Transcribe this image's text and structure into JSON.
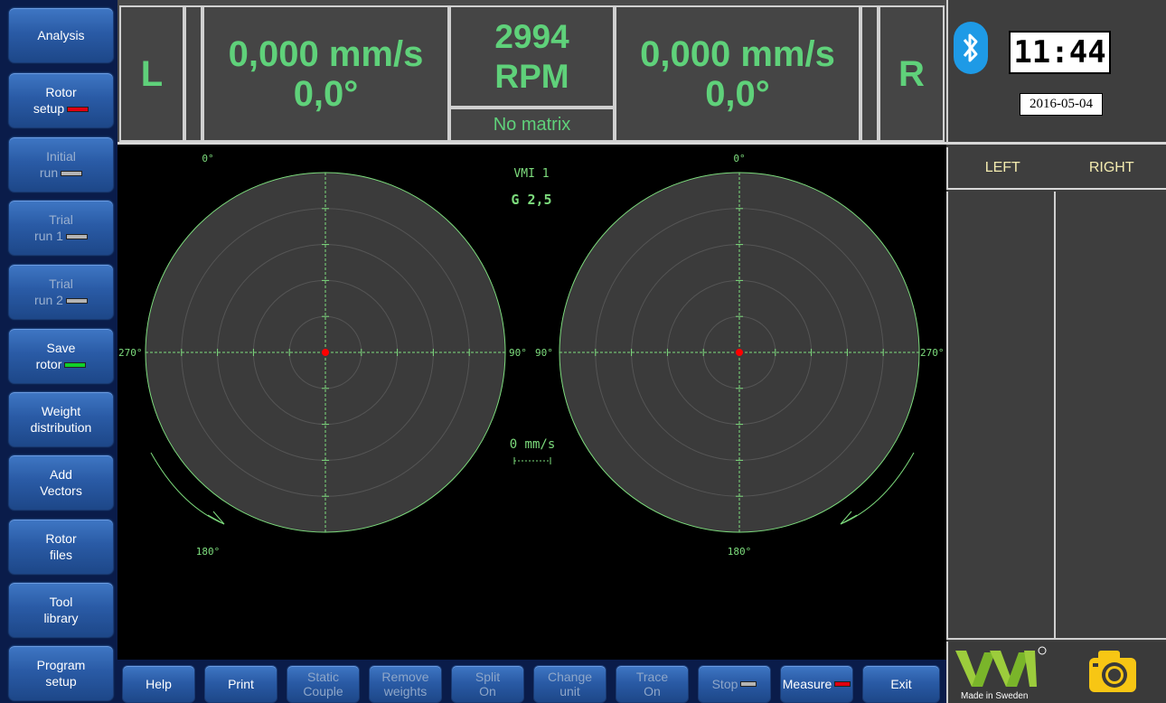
{
  "sidebar": {
    "items": [
      {
        "line1": "Analysis",
        "line2": "",
        "indicator": "",
        "enabled": true
      },
      {
        "line1": "Rotor",
        "line2": "setup",
        "indicator": "red",
        "enabled": true
      },
      {
        "line1": "Initial",
        "line2": "run",
        "indicator": "gray",
        "enabled": false
      },
      {
        "line1": "Trial",
        "line2": "run 1",
        "indicator": "gray",
        "enabled": false
      },
      {
        "line1": "Trial",
        "line2": "run 2",
        "indicator": "gray",
        "enabled": false
      },
      {
        "line1": "Save",
        "line2": "rotor",
        "indicator": "green",
        "enabled": true
      },
      {
        "line1": "Weight",
        "line2": "distribution",
        "indicator": "",
        "enabled": true
      },
      {
        "line1": "Add",
        "line2": "Vectors",
        "indicator": "",
        "enabled": true
      },
      {
        "line1": "Rotor",
        "line2": "files",
        "indicator": "",
        "enabled": true
      },
      {
        "line1": "Tool",
        "line2": "library",
        "indicator": "",
        "enabled": true
      },
      {
        "line1": "Program",
        "line2": "setup",
        "indicator": "",
        "enabled": true
      }
    ]
  },
  "readout": {
    "left_label": "L",
    "right_label": "R",
    "left_velocity": "0,000 mm/s",
    "left_angle": "0,0°",
    "right_velocity": "0,000 mm/s",
    "right_angle": "0,0°",
    "rpm_value": "2994",
    "rpm_unit": "RPM",
    "matrix_status": "No matrix"
  },
  "status": {
    "time": "11:44",
    "date": "2016-05-04",
    "bluetooth_icon": "bluetooth-icon"
  },
  "table": {
    "left_header": "LEFT",
    "right_header": "RIGHT"
  },
  "plot": {
    "vmi": "VMI 1",
    "grade": "G 2,5",
    "scale": "0 mm/s",
    "left": {
      "top": "0°",
      "bottom": "180°",
      "left": "270°",
      "right": "90°"
    },
    "right": {
      "top": "0°",
      "bottom": "180°",
      "left": "90°",
      "right": "270°"
    },
    "colors": {
      "circle": "#7ddc7d",
      "dot": "#ff0000"
    }
  },
  "branding": {
    "made_in": "Made in Sweden",
    "camera_icon": "camera-icon"
  },
  "bottom": {
    "buttons": [
      {
        "line1": "Help",
        "line2": "",
        "enabled": true,
        "indicator": ""
      },
      {
        "line1": "Print",
        "line2": "",
        "enabled": true,
        "indicator": ""
      },
      {
        "line1": "Static",
        "line2": "Couple",
        "enabled": false,
        "indicator": ""
      },
      {
        "line1": "Remove",
        "line2": "weights",
        "enabled": false,
        "indicator": ""
      },
      {
        "line1": "Split",
        "line2": "On",
        "enabled": false,
        "indicator": ""
      },
      {
        "line1": "Change",
        "line2": "unit",
        "enabled": false,
        "indicator": ""
      },
      {
        "line1": "Trace",
        "line2": "On",
        "enabled": false,
        "indicator": ""
      },
      {
        "line1": "Stop",
        "line2": "",
        "enabled": false,
        "indicator": "gray"
      },
      {
        "line1": "Measure",
        "line2": "",
        "enabled": true,
        "indicator": "red"
      },
      {
        "line1": "Exit",
        "line2": "",
        "enabled": true,
        "indicator": ""
      }
    ]
  }
}
